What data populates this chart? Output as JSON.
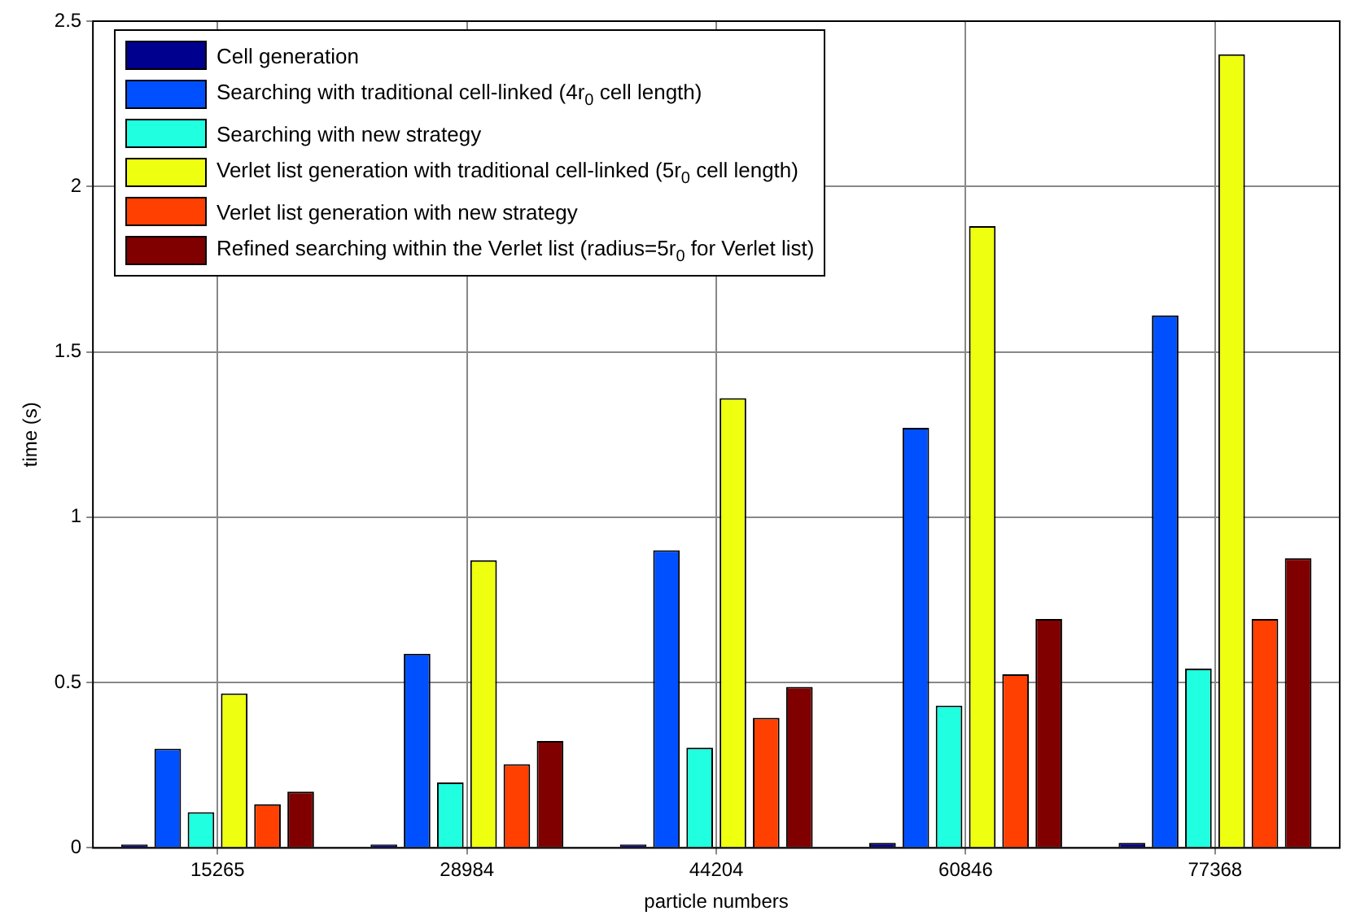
{
  "chart_data": {
    "type": "bar",
    "xlabel": "particle numbers",
    "ylabel": "time (s)",
    "categories": [
      "15265",
      "28984",
      "44204",
      "60846",
      "77368"
    ],
    "series": [
      {
        "name": "Cell generation",
        "color": "#00008f",
        "values": [
          0.01,
          0.01,
          0.01,
          0.015,
          0.015
        ]
      },
      {
        "name": "Searching with traditional cell-linked (4r$_{0}$ cell length)",
        "color": "#0050ff",
        "values": [
          0.3,
          0.587,
          0.9,
          1.27,
          1.61
        ]
      },
      {
        "name": "Searching with new strategy",
        "color": "#20ffdf",
        "values": [
          0.108,
          0.198,
          0.303,
          0.43,
          0.542
        ]
      },
      {
        "name": "Verlet list generation with traditional cell-linked (5r$_{0}$ cell length)",
        "color": "#efff10",
        "values": [
          0.467,
          0.87,
          1.36,
          1.88,
          2.4
        ]
      },
      {
        "name": "Verlet list generation with new strategy",
        "color": "#ff4000",
        "values": [
          0.132,
          0.253,
          0.393,
          0.525,
          0.692
        ]
      },
      {
        "name": "Refined searching within the Verlet list (radius=5r$_{0}$ for Verlet list)",
        "color": "#800000",
        "values": [
          0.17,
          0.323,
          0.487,
          0.692,
          0.876
        ]
      }
    ],
    "ylim": [
      0,
      2.5
    ],
    "yticks": [
      0,
      0.5,
      1,
      1.5,
      2,
      2.5
    ],
    "grid": true,
    "legend": "top left"
  }
}
